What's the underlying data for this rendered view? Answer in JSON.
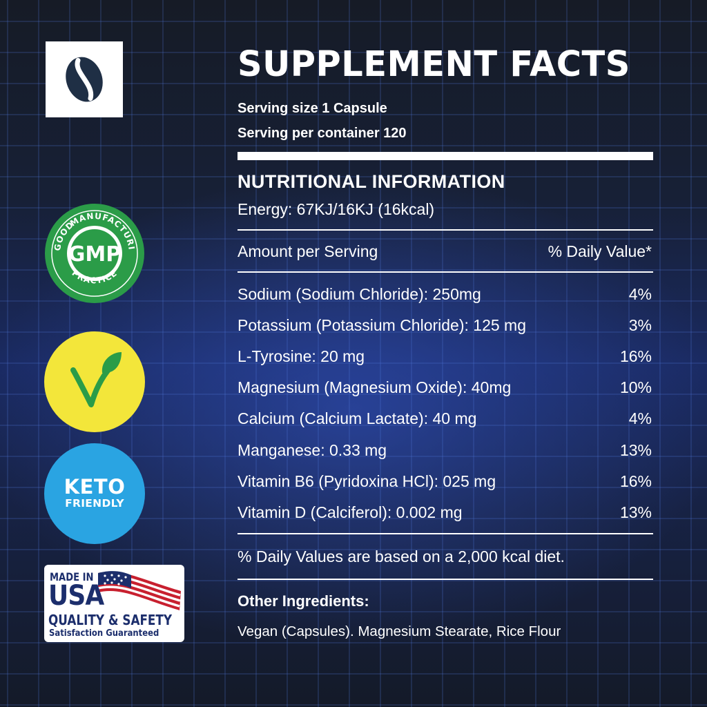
{
  "brand": {
    "logo_icon": "bean-capsule-icon",
    "logo_color": "#1f2f45"
  },
  "badges": {
    "gmp": {
      "center": "GMP",
      "top_arc": "MANUFACTURING",
      "left_arc": "GOOD",
      "bottom_arc": "PRACTICE",
      "color": "#2b9c48"
    },
    "vegan": {
      "icon": "vegan-v-leaf-icon",
      "color": "#f3e63a"
    },
    "keto": {
      "line1": "KETO",
      "line2": "FRIENDLY",
      "color": "#2aa4e2"
    },
    "usa": {
      "line1": "MADE IN",
      "line2": "USA",
      "line3": "QUALITY & SAFETY",
      "line4": "Satisfaction Guaranteed"
    }
  },
  "facts": {
    "title": "SUPPLEMENT FACTS",
    "serving_size": "Serving size 1 Capsule",
    "servings_per_container": "Serving per container 120",
    "nutritional_heading": "NUTRITIONAL INFORMATION",
    "energy": "Energy: 67KJ/16KJ (16kcal)",
    "amount_header": "Amount per Serving",
    "dv_header": "% Daily Value*",
    "rows": [
      {
        "name": "Sodium (Sodium Chloride): 250mg",
        "dv": "4%"
      },
      {
        "name": "Potassium (Potassium Chloride): 125 mg",
        "dv": "3%"
      },
      {
        "name": "L-Tyrosine: 20 mg",
        "dv": "16%"
      },
      {
        "name": "Magnesium (Magnesium Oxide): 40mg",
        "dv": "10%"
      },
      {
        "name": "Calcium (Calcium Lactate): 40 mg",
        "dv": "4%"
      },
      {
        "name": "Manganese: 0.33 mg",
        "dv": "13%"
      },
      {
        "name": "Vitamin B6 (Pyridoxina HCl): 025 mg",
        "dv": "16%"
      },
      {
        "name": "Vitamin D (Calciferol): 0.002 mg",
        "dv": "13%"
      }
    ],
    "footnote": "% Daily Values are based on a 2,000 kcal diet.",
    "other_label": "Other Ingredients:",
    "other_text": "Vegan (Capsules). Magnesium Stearate, Rice Flour"
  }
}
